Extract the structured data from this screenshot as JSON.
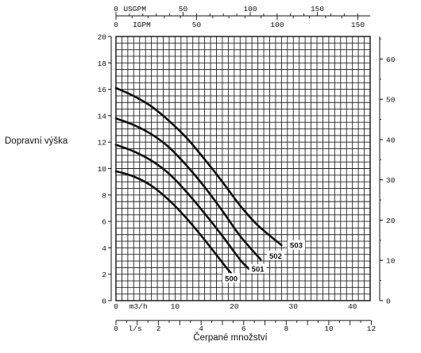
{
  "chart_data": {
    "type": "line",
    "ylabel": "Dopravní výška",
    "xlabel": "Čerpané množství",
    "x_unit_main": "m3/h",
    "x_unit_ls": "l/s",
    "x_unit_usgpm": "USGPM",
    "x_unit_igpm": "IGPM",
    "xlim_m3h": [
      0,
      43
    ],
    "ylim_m": [
      0,
      20
    ],
    "ylim_ft": [
      0,
      65.6
    ],
    "grid": true,
    "x_ticks_m3h": [
      0,
      10,
      20,
      30,
      40
    ],
    "x_ticks_ls": [
      0,
      2,
      4,
      6,
      8,
      10,
      12
    ],
    "x_ticks_usgpm": [
      0,
      50,
      100,
      150
    ],
    "x_ticks_igpm": [
      0,
      50,
      100,
      150
    ],
    "y_ticks_m": [
      0,
      2,
      4,
      6,
      8,
      10,
      12,
      14,
      16,
      18,
      20
    ],
    "y_ticks_ft": [
      0,
      10,
      20,
      30,
      40,
      50,
      60
    ],
    "series": [
      {
        "name": "500",
        "label_at": [
          19.5,
          1.6
        ],
        "x": [
          0,
          3,
          6,
          9,
          12,
          15,
          18.5,
          20
        ],
        "y": [
          9.8,
          9.4,
          8.7,
          7.6,
          6.2,
          4.6,
          2.6,
          1.8
        ]
      },
      {
        "name": "501",
        "label_at": [
          24,
          2.3
        ],
        "x": [
          0,
          3,
          6,
          9,
          12,
          15,
          18,
          21,
          22.5
        ],
        "y": [
          11.8,
          11.3,
          10.6,
          9.6,
          8.2,
          6.6,
          4.9,
          3.1,
          2.4
        ]
      },
      {
        "name": "502",
        "label_at": [
          27,
          3.3
        ],
        "x": [
          0,
          3,
          6,
          9,
          12,
          15,
          18,
          21,
          24.5
        ],
        "y": [
          13.8,
          13.3,
          12.6,
          11.6,
          10.2,
          8.6,
          6.8,
          4.9,
          3.1
        ]
      },
      {
        "name": "503",
        "label_at": [
          30.5,
          4.1
        ],
        "x": [
          0,
          3,
          6,
          9,
          12,
          15,
          18,
          21,
          24,
          28
        ],
        "y": [
          16.1,
          15.5,
          14.7,
          13.6,
          12.3,
          10.7,
          9.0,
          7.2,
          5.7,
          4.2
        ]
      }
    ]
  }
}
